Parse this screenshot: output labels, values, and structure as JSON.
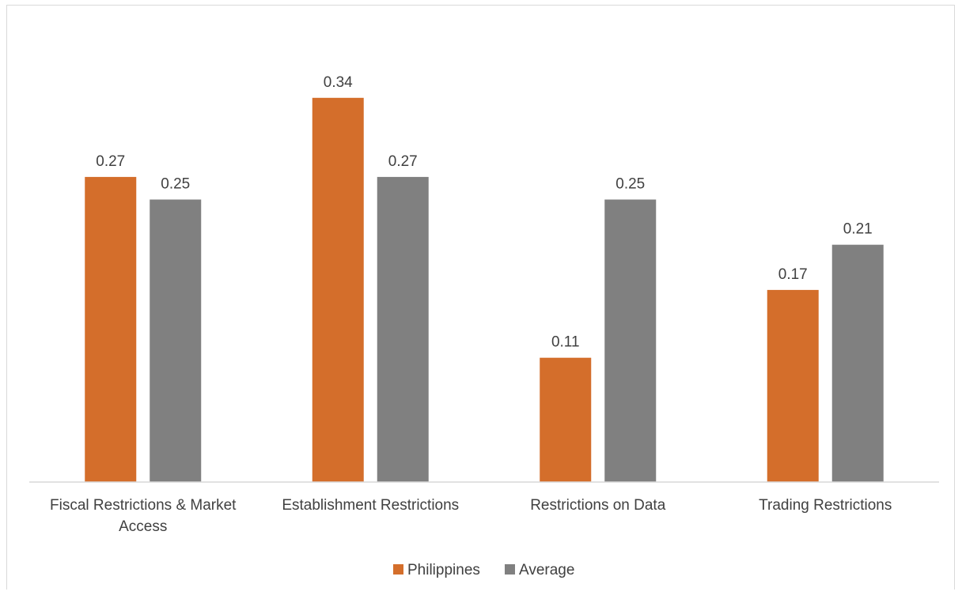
{
  "chart_data": {
    "type": "bar",
    "title": "",
    "xlabel": "",
    "ylabel": "",
    "ylim": [
      0,
      0.37
    ],
    "grid": false,
    "legend_position": "bottom",
    "categories": [
      "Fiscal Restrictions & Market Access",
      "Establishment Restrictions",
      "Restrictions on Data",
      "Trading Restrictions"
    ],
    "category_lines": [
      [
        "Fiscal Restrictions & Market",
        "Access"
      ],
      [
        "Establishment Restrictions"
      ],
      [
        "Restrictions on Data"
      ],
      [
        "Trading Restrictions"
      ]
    ],
    "series": [
      {
        "name": "Philippines",
        "color": "#d46e2b",
        "values": [
          0.27,
          0.34,
          0.11,
          0.17
        ],
        "labels": [
          "0.27",
          "0.34",
          "0.11",
          "0.17"
        ]
      },
      {
        "name": "Average",
        "color": "#808080",
        "values": [
          0.25,
          0.27,
          0.25,
          0.21
        ],
        "labels": [
          "0.25",
          "0.27",
          "0.25",
          "0.21"
        ]
      }
    ]
  }
}
